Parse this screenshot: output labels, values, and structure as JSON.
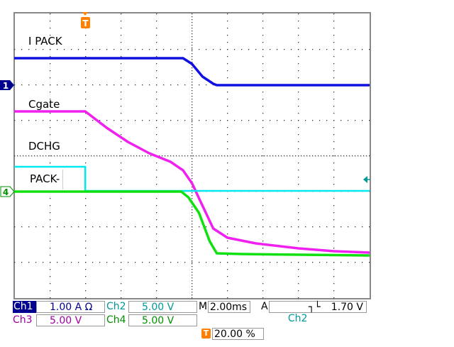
{
  "trace_labels": {
    "ipack": "I PACK",
    "cgate": "Cgate",
    "dchg": "DCHG",
    "pack": "PACK-"
  },
  "readout": {
    "ch1_label": "Ch1",
    "ch1_scale": "1.00 A Ω",
    "ch2_label": "Ch2",
    "ch2_scale": "5.00 V",
    "ch3_label": "Ch3",
    "ch3_scale": "5.00 V",
    "ch4_label": "Ch4",
    "ch4_scale": "5.00 V",
    "timebase_label": "M",
    "timebase": "2.00ms",
    "trigger_label": "A",
    "trigger_source": "Ch2",
    "trigger_slope": "falling-edge-icon",
    "trigger_level": "1.70 V",
    "trigger_position_icon": "T",
    "trigger_position": "20.00 %"
  },
  "markers": {
    "ch1": "1",
    "ch4": "4",
    "trigger": "T"
  },
  "colors": {
    "ch1": "#1010e0",
    "ch2": "#00e8f0",
    "ch3": "#f020f0",
    "ch4": "#10e010",
    "trigger": "#ff8000",
    "ch1_readout": "#000090",
    "ch2_readout": "#009898",
    "ch3_readout": "#a000a0",
    "ch4_readout": "#009000"
  },
  "chart_data": {
    "type": "line",
    "xlabel": "",
    "ylabel": "",
    "x_unit": "ms",
    "y_unit": "divisions",
    "xlim": [
      -4,
      16
    ],
    "ylim": [
      -4,
      4
    ],
    "grid": true,
    "series": [
      {
        "name": "I PACK",
        "channel": "ch1",
        "x": [
          -4,
          5.5,
          6,
          6.6,
          7.2,
          7.4,
          16
        ],
        "y": [
          2.74,
          2.74,
          2.58,
          2.22,
          2.02,
          1.98,
          1.98
        ]
      },
      {
        "name": "Cgate",
        "channel": "ch3",
        "x": [
          -4,
          0,
          1.2,
          2.4,
          3.6,
          4.8,
          5.5,
          6,
          6.6,
          7.2,
          8,
          9.6,
          12,
          14,
          16
        ],
        "y": [
          1.24,
          1.24,
          0.78,
          0.38,
          0.06,
          -0.18,
          -0.42,
          -0.78,
          -1.42,
          -2.06,
          -2.32,
          -2.48,
          -2.62,
          -2.7,
          -2.74
        ]
      },
      {
        "name": "DCHG",
        "channel": "ch2",
        "x": [
          -4,
          0,
          0,
          16
        ],
        "y": [
          -0.32,
          -0.32,
          -1.0,
          -1.0
        ]
      },
      {
        "name": "PACK-",
        "channel": "ch4",
        "x": [
          -4,
          5.4,
          5.8,
          6.4,
          7,
          7.4,
          8.8,
          16
        ],
        "y": [
          -1.02,
          -1.02,
          -1.18,
          -1.62,
          -2.42,
          -2.76,
          -2.78,
          -2.82
        ]
      }
    ]
  }
}
